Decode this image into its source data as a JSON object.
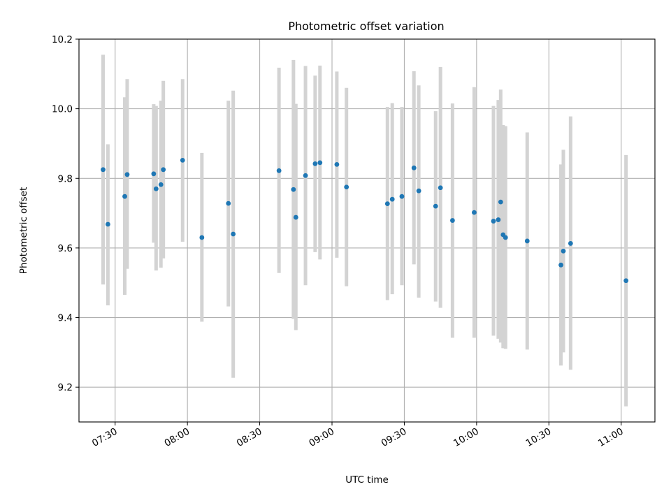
{
  "chart_data": {
    "type": "scatter",
    "title": "Photometric offset variation",
    "xlabel": "UTC time",
    "ylabel": "Photometric offset",
    "x_axis_type": "time",
    "xlim": [
      "07:15",
      "11:14"
    ],
    "ylim": [
      9.1,
      10.2
    ],
    "x_ticks": [
      "07:30",
      "08:00",
      "08:30",
      "09:00",
      "09:30",
      "10:00",
      "10:30",
      "11:00"
    ],
    "y_ticks": [
      "9.2",
      "9.4",
      "9.6",
      "9.8",
      "10.0",
      "10.2"
    ],
    "grid": true,
    "colors": {
      "points": "#1f77b4",
      "error_bars": "#d3d3d3",
      "grid": "#b0b0b0"
    },
    "points": [
      {
        "x": "07:25",
        "y": 9.825,
        "ylow": 9.495,
        "yhigh": 10.155
      },
      {
        "x": "07:27",
        "y": 9.668,
        "ylow": 9.435,
        "yhigh": 9.898
      },
      {
        "x": "07:34",
        "y": 9.748,
        "ylow": 9.465,
        "yhigh": 10.033
      },
      {
        "x": "07:35",
        "y": 9.811,
        "ylow": 9.54,
        "yhigh": 10.085
      },
      {
        "x": "07:46",
        "y": 9.813,
        "ylow": 9.615,
        "yhigh": 10.013
      },
      {
        "x": "07:47",
        "y": 9.77,
        "ylow": 9.535,
        "yhigh": 10.008
      },
      {
        "x": "07:49",
        "y": 9.782,
        "ylow": 9.543,
        "yhigh": 10.023
      },
      {
        "x": "07:50",
        "y": 9.825,
        "ylow": 9.57,
        "yhigh": 10.08
      },
      {
        "x": "07:58",
        "y": 9.852,
        "ylow": 9.618,
        "yhigh": 10.085
      },
      {
        "x": "08:06",
        "y": 9.63,
        "ylow": 9.388,
        "yhigh": 9.873
      },
      {
        "x": "08:17",
        "y": 9.728,
        "ylow": 9.432,
        "yhigh": 10.023
      },
      {
        "x": "08:19",
        "y": 9.64,
        "ylow": 9.227,
        "yhigh": 10.052
      },
      {
        "x": "08:38",
        "y": 9.822,
        "ylow": 9.528,
        "yhigh": 10.118
      },
      {
        "x": "08:44",
        "y": 9.768,
        "ylow": 9.396,
        "yhigh": 10.14
      },
      {
        "x": "08:45",
        "y": 9.688,
        "ylow": 9.364,
        "yhigh": 10.014
      },
      {
        "x": "08:49",
        "y": 9.808,
        "ylow": 9.493,
        "yhigh": 10.123
      },
      {
        "x": "08:53",
        "y": 9.842,
        "ylow": 9.588,
        "yhigh": 10.095
      },
      {
        "x": "08:55",
        "y": 9.845,
        "ylow": 9.567,
        "yhigh": 10.124
      },
      {
        "x": "09:02",
        "y": 9.84,
        "ylow": 9.572,
        "yhigh": 10.107
      },
      {
        "x": "09:06",
        "y": 9.775,
        "ylow": 9.49,
        "yhigh": 10.06
      },
      {
        "x": "09:23",
        "y": 9.727,
        "ylow": 9.45,
        "yhigh": 10.005
      },
      {
        "x": "09:25",
        "y": 9.74,
        "ylow": 9.467,
        "yhigh": 10.016
      },
      {
        "x": "09:29",
        "y": 9.748,
        "ylow": 9.493,
        "yhigh": 10.005
      },
      {
        "x": "09:34",
        "y": 9.83,
        "ylow": 9.553,
        "yhigh": 10.108
      },
      {
        "x": "09:36",
        "y": 9.764,
        "ylow": 9.457,
        "yhigh": 10.067
      },
      {
        "x": "09:43",
        "y": 9.72,
        "ylow": 9.446,
        "yhigh": 9.993
      },
      {
        "x": "09:45",
        "y": 9.773,
        "ylow": 9.428,
        "yhigh": 10.12
      },
      {
        "x": "09:50",
        "y": 9.679,
        "ylow": 9.342,
        "yhigh": 10.015
      },
      {
        "x": "09:59",
        "y": 9.702,
        "ylow": 9.342,
        "yhigh": 10.062
      },
      {
        "x": "10:07",
        "y": 9.677,
        "ylow": 9.348,
        "yhigh": 10.008
      },
      {
        "x": "10:09",
        "y": 9.681,
        "ylow": 9.339,
        "yhigh": 10.025
      },
      {
        "x": "10:10",
        "y": 9.732,
        "ylow": 9.328,
        "yhigh": 10.055
      },
      {
        "x": "10:11",
        "y": 9.638,
        "ylow": 9.312,
        "yhigh": 9.953
      },
      {
        "x": "10:12",
        "y": 9.63,
        "ylow": 9.31,
        "yhigh": 9.95
      },
      {
        "x": "10:21",
        "y": 9.62,
        "ylow": 9.308,
        "yhigh": 9.932
      },
      {
        "x": "10:35",
        "y": 9.551,
        "ylow": 9.262,
        "yhigh": 9.84
      },
      {
        "x": "10:36",
        "y": 9.591,
        "ylow": 9.3,
        "yhigh": 9.882
      },
      {
        "x": "10:39",
        "y": 9.613,
        "ylow": 9.25,
        "yhigh": 9.978
      },
      {
        "x": "11:02",
        "y": 9.506,
        "ylow": 9.145,
        "yhigh": 9.867
      }
    ]
  }
}
